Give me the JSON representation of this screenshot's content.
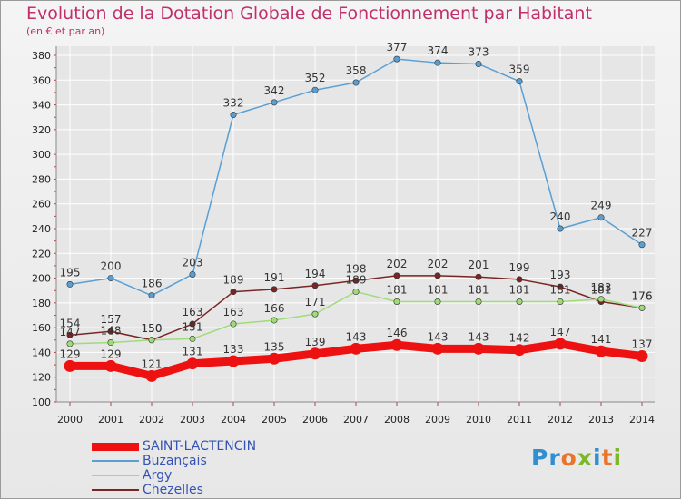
{
  "page": {
    "title": "Evolution de la Dotation Globale de Fonctionnement par Habitant",
    "subtitle": "(en € et par an)",
    "logo": "Proxiti"
  },
  "colors": {
    "title": "#c0306a",
    "legend_text": "#3553b5",
    "grid": "#ffffff",
    "axis_text": "#222222"
  },
  "chart_data": {
    "type": "line",
    "title": "Evolution de la Dotation Globale de Fonctionnement par Habitant",
    "subtitle": "(en € et par an)",
    "x": [
      "2000",
      "2001",
      "2002",
      "2003",
      "2004",
      "2005",
      "2006",
      "2007",
      "2008",
      "2009",
      "2010",
      "2011",
      "2012",
      "2013",
      "2014"
    ],
    "ylim": [
      100,
      380
    ],
    "yticks": [
      100,
      120,
      140,
      160,
      180,
      200,
      220,
      240,
      260,
      280,
      300,
      320,
      340,
      360,
      380
    ],
    "grid": true,
    "legend_position": "bottom-left",
    "series": [
      {
        "name": "SAINT-LACTENCIN",
        "color": "#ee1111",
        "values": [
          129,
          129,
          121,
          131,
          133,
          135,
          139,
          143,
          146,
          143,
          143,
          142,
          147,
          141,
          137
        ]
      },
      {
        "name": "Buzançais",
        "color": "#5a9fd4",
        "values": [
          195,
          200,
          186,
          203,
          332,
          342,
          352,
          358,
          377,
          374,
          373,
          359,
          240,
          249,
          227
        ]
      },
      {
        "name": "Argy",
        "color": "#9fdc78",
        "values": [
          147,
          148,
          150,
          151,
          163,
          166,
          171,
          189,
          181,
          181,
          181,
          181,
          181,
          183,
          176
        ]
      },
      {
        "name": "Chezelles",
        "color": "#7a2525",
        "values": [
          154,
          157,
          150,
          163,
          189,
          191,
          194,
          198,
          202,
          202,
          201,
          199,
          193,
          181,
          176
        ]
      }
    ]
  }
}
